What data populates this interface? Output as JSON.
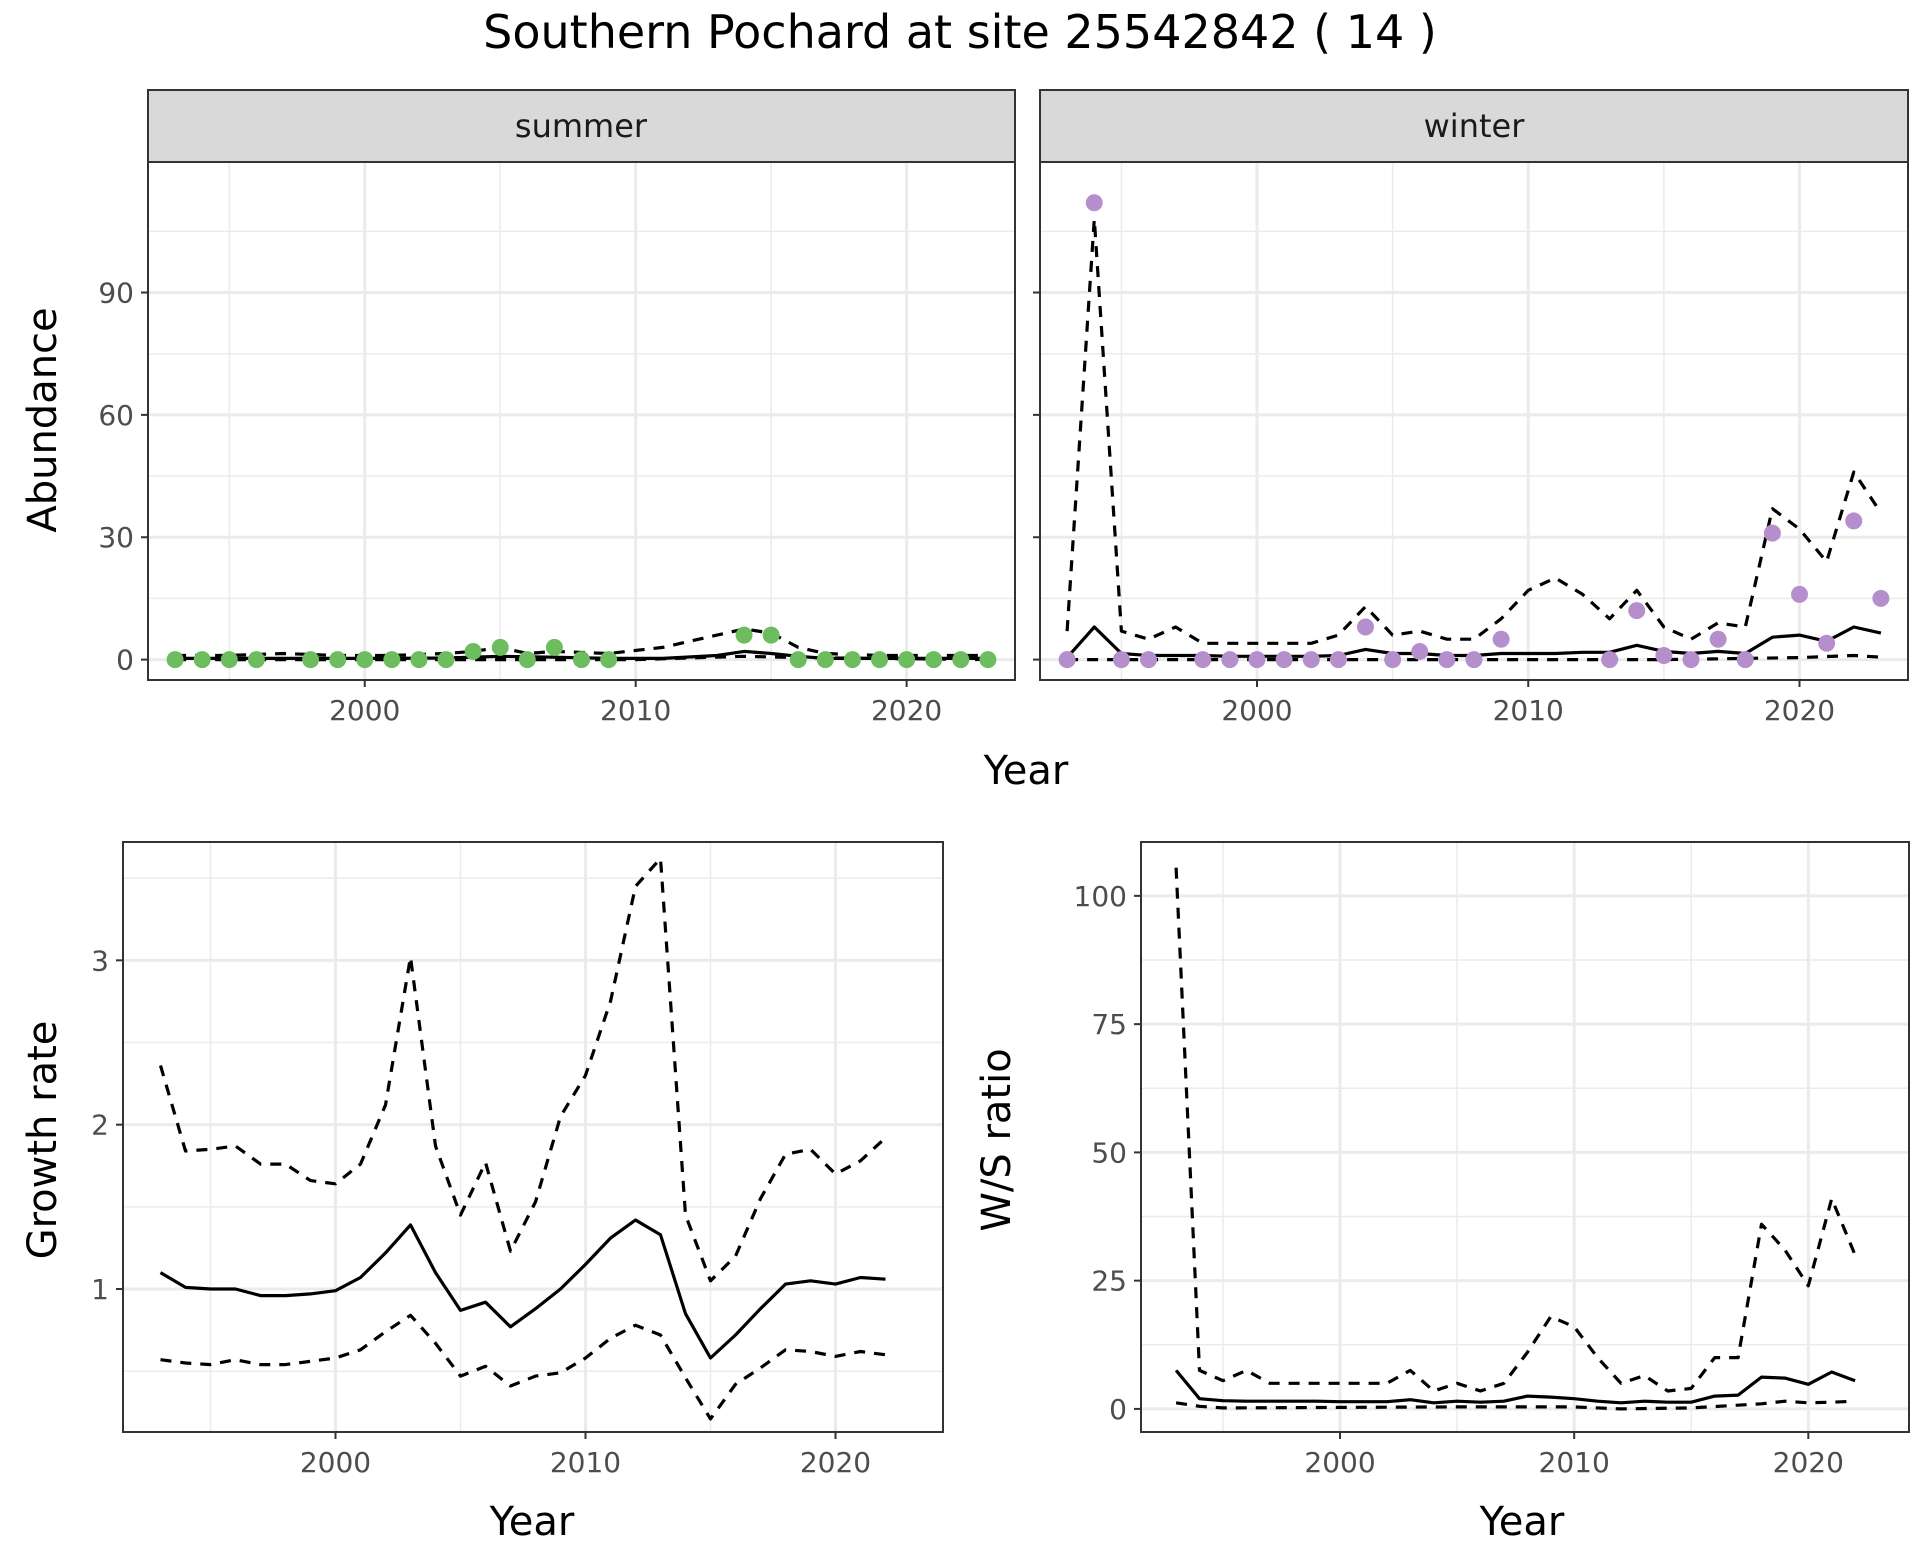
{
  "title": "Southern Pochard at site 25542842 ( 14 )",
  "colors": {
    "summer": "#6dbd5e",
    "winter": "#b58fcb",
    "line": "#000000",
    "strip": "#d9d9d9",
    "grid": "#ebebeb"
  },
  "chart_data": [
    {
      "type": "scatter",
      "facet": "summer",
      "xlabel": "Year",
      "ylabel": "Abundance",
      "xlim": [
        1992,
        2024
      ],
      "ylim": [
        -5,
        122
      ],
      "xticks": [
        2000,
        2010,
        2020
      ],
      "yticks": [
        0,
        30,
        60,
        90
      ],
      "grid": true,
      "points": {
        "x": [
          1993,
          1994,
          1995,
          1996,
          1998,
          1999,
          2000,
          2001,
          2002,
          2003,
          2004,
          2005,
          2006,
          2007,
          2008,
          2009,
          2014,
          2015,
          2016,
          2017,
          2018,
          2019,
          2020,
          2021,
          2022,
          2023
        ],
        "y": [
          0,
          0,
          0,
          0,
          0,
          0,
          0,
          0,
          0,
          0,
          2,
          3,
          0,
          3,
          0,
          0,
          6,
          6,
          0,
          0,
          0,
          0,
          0,
          0,
          0,
          0
        ]
      },
      "series": [
        {
          "name": "",
          "style": "solid",
          "x": [
            1993,
            1995,
            1997,
            1999,
            2001,
            2003,
            2005,
            2007,
            2009,
            2011,
            2013,
            2014,
            2015,
            2016,
            2017,
            2019,
            2021,
            2023
          ],
          "y": [
            0.3,
            0.3,
            0.3,
            0.3,
            0.3,
            0.4,
            0.8,
            0.6,
            0.3,
            0.3,
            1.0,
            2.0,
            1.5,
            0.8,
            0.3,
            0.3,
            0.3,
            0.3
          ]
        },
        {
          "name": "",
          "style": "dashed",
          "x": [
            1993,
            1995,
            1997,
            1999,
            2001,
            2003,
            2004,
            2005,
            2006,
            2007,
            2009,
            2011,
            2013,
            2014,
            2015,
            2016,
            2017,
            2019,
            2021,
            2023
          ],
          "y": [
            1.0,
            1.0,
            1.5,
            1.0,
            1.0,
            1.5,
            2.0,
            3.0,
            1.5,
            2.0,
            1.5,
            3.0,
            6.0,
            7.5,
            6.5,
            3.0,
            1.5,
            1.0,
            1.0,
            1.0
          ]
        },
        {
          "name": "",
          "style": "dashed",
          "x": [
            1993,
            2005,
            2010,
            2014,
            2016,
            2023
          ],
          "y": [
            0,
            0,
            0,
            0.8,
            0.5,
            0
          ]
        }
      ]
    },
    {
      "type": "scatter",
      "facet": "winter",
      "xlabel": "Year",
      "ylabel": "Abundance",
      "xlim": [
        1992,
        2024
      ],
      "ylim": [
        -5,
        122
      ],
      "xticks": [
        2000,
        2010,
        2020
      ],
      "yticks": [
        0,
        30,
        60,
        90
      ],
      "grid": true,
      "points": {
        "x": [
          1993,
          1994,
          1995,
          1996,
          1998,
          1999,
          2000,
          2001,
          2002,
          2003,
          2004,
          2005,
          2006,
          2007,
          2008,
          2009,
          2013,
          2014,
          2015,
          2016,
          2017,
          2018,
          2019,
          2020,
          2021,
          2022,
          2023
        ],
        "y": [
          0,
          112,
          0,
          0,
          0,
          0,
          0,
          0,
          0,
          0,
          8,
          0,
          2,
          0,
          0,
          5,
          0,
          12,
          1,
          0,
          5,
          0,
          31,
          16,
          4,
          34,
          15
        ]
      },
      "series": [
        {
          "name": "",
          "style": "solid",
          "x": [
            1993,
            1994,
            1995,
            1996,
            1997,
            1998,
            1999,
            2000,
            2001,
            2002,
            2003,
            2004,
            2005,
            2006,
            2007,
            2008,
            2009,
            2010,
            2011,
            2012,
            2013,
            2014,
            2015,
            2016,
            2017,
            2018,
            2019,
            2020,
            2021,
            2022,
            2023
          ],
          "y": [
            0.5,
            8,
            1.5,
            1,
            1,
            1,
            0.8,
            0.8,
            0.8,
            0.8,
            1,
            2.5,
            1.5,
            1.5,
            1,
            1,
            1.5,
            1.5,
            1.5,
            1.8,
            1.8,
            3.5,
            2,
            1.5,
            2,
            1.5,
            5.5,
            6,
            4.5,
            8,
            6.5
          ]
        },
        {
          "name": "",
          "style": "dashed",
          "x": [
            1993,
            1994,
            1995,
            1996,
            1997,
            1998,
            1999,
            2000,
            2001,
            2002,
            2003,
            2004,
            2005,
            2006,
            2007,
            2008,
            2009,
            2010,
            2011,
            2012,
            2013,
            2014,
            2015,
            2016,
            2017,
            2018,
            2019,
            2020,
            2021,
            2022,
            2023
          ],
          "y": [
            7,
            108,
            7,
            5,
            8,
            4,
            4,
            4,
            4,
            4,
            6,
            13,
            6,
            7,
            5,
            5,
            10,
            17,
            20,
            16,
            10,
            17,
            8,
            5,
            9,
            8,
            37,
            32,
            24,
            46,
            36
          ]
        },
        {
          "name": "",
          "style": "dashed",
          "x": [
            1993,
            2000,
            2005,
            2010,
            2015,
            2018,
            2020,
            2022,
            2023
          ],
          "y": [
            0,
            0,
            0,
            0,
            0,
            0.3,
            0.5,
            1,
            0.6
          ]
        }
      ]
    },
    {
      "type": "line",
      "xlabel": "Year",
      "ylabel": "Growth rate",
      "xlim": [
        1991.5,
        2024.3
      ],
      "ylim": [
        0.13,
        3.72
      ],
      "xticks": [
        2000,
        2010,
        2020
      ],
      "yticks": [
        1,
        2,
        3
      ],
      "grid": true,
      "series": [
        {
          "name": "",
          "style": "solid",
          "x": [
            1993,
            1994,
            1995,
            1996,
            1997,
            1998,
            1999,
            2000,
            2001,
            2002,
            2003,
            2004,
            2005,
            2006,
            2007,
            2008,
            2009,
            2010,
            2011,
            2012,
            2013,
            2014,
            2015,
            2016,
            2017,
            2018,
            2019,
            2020,
            2021,
            2022
          ],
          "y": [
            1.1,
            1.01,
            1.0,
            1.0,
            0.96,
            0.96,
            0.97,
            0.99,
            1.07,
            1.22,
            1.39,
            1.1,
            0.87,
            0.92,
            0.77,
            0.88,
            1.0,
            1.15,
            1.31,
            1.42,
            1.33,
            0.85,
            0.58,
            0.72,
            0.88,
            1.03,
            1.05,
            1.03,
            1.07,
            1.06
          ]
        },
        {
          "name": "",
          "style": "dashed",
          "x": [
            1993,
            1994,
            1995,
            1996,
            1997,
            1998,
            1999,
            2000,
            2001,
            2002,
            2003,
            2004,
            2005,
            2006,
            2007,
            2008,
            2009,
            2010,
            2011,
            2012,
            2013,
            2014,
            2015,
            2016,
            2017,
            2018,
            2019,
            2020,
            2021,
            2022
          ],
          "y": [
            2.36,
            1.84,
            1.85,
            1.87,
            1.76,
            1.76,
            1.66,
            1.64,
            1.76,
            2.12,
            3.02,
            1.87,
            1.45,
            1.77,
            1.23,
            1.53,
            2.05,
            2.3,
            2.75,
            3.45,
            3.62,
            1.45,
            1.05,
            1.2,
            1.55,
            1.82,
            1.85,
            1.7,
            1.78,
            1.92
          ]
        },
        {
          "name": "",
          "style": "dashed",
          "x": [
            1993,
            1994,
            1995,
            1996,
            1997,
            1998,
            1999,
            2000,
            2001,
            2002,
            2003,
            2004,
            2005,
            2006,
            2007,
            2008,
            2009,
            2010,
            2011,
            2012,
            2013,
            2014,
            2015,
            2016,
            2017,
            2018,
            2019,
            2020,
            2021,
            2022
          ],
          "y": [
            0.57,
            0.55,
            0.54,
            0.57,
            0.54,
            0.54,
            0.56,
            0.58,
            0.63,
            0.74,
            0.84,
            0.67,
            0.47,
            0.53,
            0.41,
            0.47,
            0.49,
            0.58,
            0.7,
            0.78,
            0.72,
            0.46,
            0.21,
            0.42,
            0.52,
            0.63,
            0.62,
            0.59,
            0.62,
            0.6
          ]
        }
      ]
    },
    {
      "type": "line",
      "xlabel": "Year",
      "ylabel": "W/S ratio",
      "xlim": [
        1991.5,
        2024.3
      ],
      "ylim": [
        -4.5,
        110.5
      ],
      "xticks": [
        2000,
        2010,
        2020
      ],
      "yticks": [
        0,
        25,
        50,
        75,
        100
      ],
      "grid": true,
      "series": [
        {
          "name": "",
          "style": "solid",
          "x": [
            1993,
            1994,
            1995,
            1996,
            1997,
            1998,
            1999,
            2000,
            2001,
            2002,
            2003,
            2004,
            2005,
            2006,
            2007,
            2008,
            2009,
            2010,
            2011,
            2012,
            2013,
            2014,
            2015,
            2016,
            2017,
            2018,
            2019,
            2020,
            2021,
            2022
          ],
          "y": [
            7.5,
            2,
            1.6,
            1.5,
            1.5,
            1.5,
            1.5,
            1.4,
            1.4,
            1.4,
            1.8,
            1.2,
            1.5,
            1.3,
            1.5,
            2.5,
            2.3,
            2.0,
            1.5,
            1.2,
            1.5,
            1.3,
            1.3,
            2.5,
            2.7,
            6.2,
            6.0,
            4.8,
            7.2,
            5.5
          ]
        },
        {
          "name": "",
          "style": "dashed",
          "x": [
            1993,
            1994,
            1995,
            1996,
            1997,
            1998,
            1999,
            2000,
            2001,
            2002,
            2003,
            2004,
            2005,
            2006,
            2007,
            2008,
            2009,
            2010,
            2011,
            2012,
            2013,
            2014,
            2015,
            2016,
            2017,
            2018,
            2019,
            2020,
            2021,
            2022
          ],
          "y": [
            105.5,
            7.5,
            5.5,
            7.5,
            5,
            5,
            5,
            5,
            5,
            5,
            7.5,
            3.5,
            5,
            3.5,
            5,
            11,
            18,
            16,
            10,
            5,
            6.5,
            3.5,
            4,
            10,
            10,
            36,
            31,
            24,
            41,
            30
          ]
        },
        {
          "name": "",
          "style": "dashed",
          "x": [
            1993,
            1994,
            1995,
            2000,
            2005,
            2010,
            2012,
            2015,
            2018,
            2019,
            2020,
            2021,
            2022
          ],
          "y": [
            1.2,
            0.5,
            0.2,
            0.3,
            0.4,
            0.4,
            0,
            0.2,
            1,
            1.5,
            1.2,
            1.3,
            1.5
          ]
        }
      ]
    }
  ],
  "panels": {
    "abundance": {
      "xlabel": "Year",
      "ylabel": "Abundance",
      "strips": [
        "summer",
        "winter"
      ]
    },
    "growth": {
      "xlabel": "Year",
      "ylabel": "Growth rate"
    },
    "ws": {
      "xlabel": "Year",
      "ylabel": "W/S ratio"
    }
  }
}
